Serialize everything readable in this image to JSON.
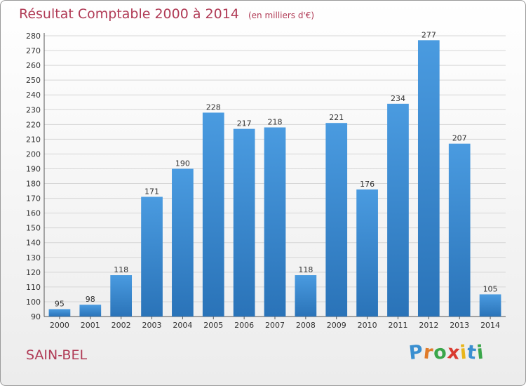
{
  "title": "Résultat Comptable 2000 à 2014",
  "subtitle": "(en milliers d'€)",
  "place": "SAIN-BEL",
  "logo": {
    "letters": [
      "P",
      "r",
      "o",
      "x",
      "i",
      "t",
      "i"
    ],
    "colors": [
      "#3a8fd0",
      "#e07b2a",
      "#3aa64a",
      "#d93a2f",
      "#e9b61c",
      "#3a8fd0",
      "#3aa64a"
    ]
  },
  "colors": {
    "bar": "#4a9be0",
    "bar_dark": "#2a73b8",
    "title": "#b03a55",
    "grid": "#d6d6d6"
  },
  "chart_data": {
    "type": "bar",
    "title": "Résultat Comptable 2000 à 2014",
    "subtitle": "(en milliers d'€)",
    "categories": [
      "2000",
      "2001",
      "2002",
      "2003",
      "2004",
      "2005",
      "2006",
      "2007",
      "2008",
      "2009",
      "2010",
      "2011",
      "2012",
      "2013",
      "2014"
    ],
    "values": [
      95,
      98,
      118,
      171,
      190,
      228,
      217,
      218,
      118,
      221,
      176,
      234,
      277,
      207,
      105
    ],
    "ylim": [
      90,
      280
    ],
    "yticks": [
      90,
      100,
      110,
      120,
      130,
      140,
      150,
      160,
      170,
      180,
      190,
      200,
      210,
      220,
      230,
      240,
      250,
      260,
      270,
      280
    ],
    "grid": true,
    "data_labels": true
  }
}
